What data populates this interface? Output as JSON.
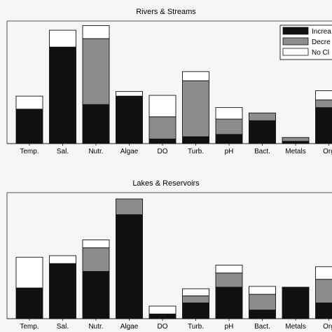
{
  "chart_data": [
    {
      "type": "bar",
      "stacked": true,
      "title": "Rivers & Streams",
      "categories": [
        "Temp.",
        "Sal.",
        "Nutr.",
        "Algae",
        "DO",
        "Turb.",
        "pH",
        "Bact.",
        "Metals",
        "Org"
      ],
      "ylim": [
        0,
        160
      ],
      "series": [
        {
          "name": "Increa",
          "color": "#111111",
          "values": [
            45,
            126,
            51,
            62,
            6,
            9,
            12,
            30,
            3,
            47
          ]
        },
        {
          "name": "Decre",
          "color": "#8c8c8c",
          "values": [
            0,
            0,
            86,
            0,
            29,
            73,
            20,
            10,
            5,
            10
          ]
        },
        {
          "name": "No Cl",
          "color": "#ffffff",
          "values": [
            17,
            22,
            17,
            6,
            28,
            12,
            15,
            0,
            0,
            12
          ]
        }
      ],
      "legend": {
        "placement": "top-right",
        "entries": [
          "Increa",
          "Decre",
          "No Cl"
        ]
      }
    },
    {
      "type": "bar",
      "stacked": true,
      "title": "Lakes & Reservoirs",
      "categories": [
        "Temp.",
        "Sal.",
        "Nutr.",
        "Algae",
        "DO",
        "Turb.",
        "pH",
        "Bact.",
        "Metals",
        "Org"
      ],
      "ylim": [
        0,
        160
      ],
      "series": [
        {
          "name": "Increa",
          "color": "#111111",
          "values": [
            39,
            70,
            60,
            132,
            6,
            20,
            40,
            11,
            40,
            20
          ]
        },
        {
          "name": "Decre",
          "color": "#8c8c8c",
          "values": [
            0,
            0,
            30,
            20,
            0,
            9,
            18,
            20,
            0,
            30
          ]
        },
        {
          "name": "No Cl",
          "color": "#ffffff",
          "values": [
            39,
            10,
            10,
            0,
            10,
            9,
            10,
            10,
            0,
            16
          ]
        }
      ]
    }
  ]
}
